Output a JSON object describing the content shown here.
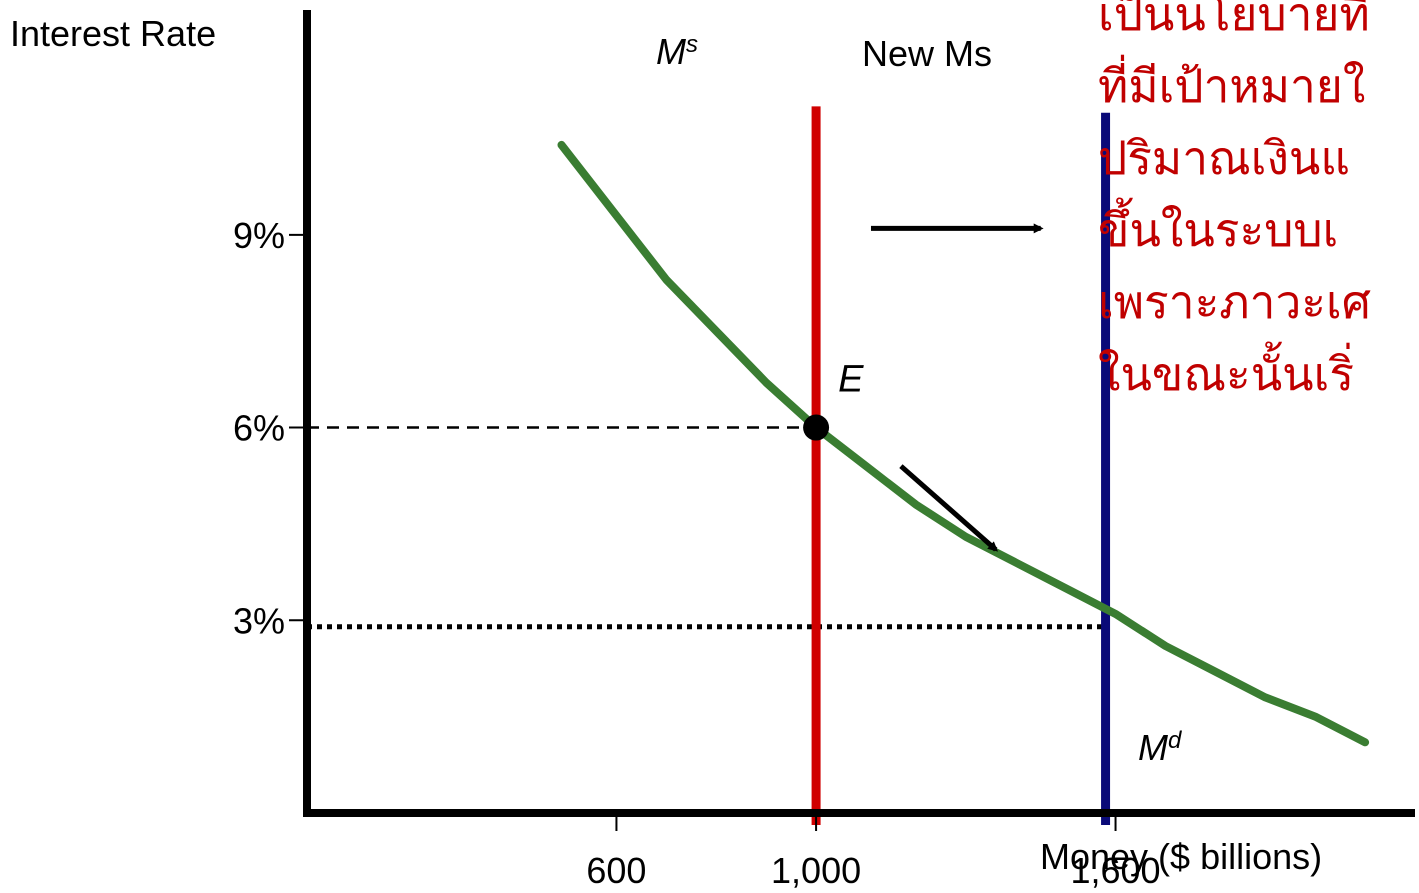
{
  "chart_data": {
    "type": "line",
    "ylabel": "Interest Rate",
    "xlabel": "Money ($ billions)",
    "x_ticks": [
      {
        "value": 600,
        "label": "600"
      },
      {
        "value": 1000,
        "label": "1,000"
      },
      {
        "value": 1600,
        "label": "1,600"
      }
    ],
    "y_ticks": [
      {
        "value": 3,
        "label": "3%"
      },
      {
        "value": 6,
        "label": "6%"
      },
      {
        "value": 9,
        "label": "9%"
      }
    ],
    "xlim": [
      -20,
      2200
    ],
    "ylim": [
      0,
      12.5
    ],
    "series": [
      {
        "name": "Md",
        "label_main": "M",
        "label_sup": "d",
        "color": "#3a7d32",
        "x": [
          490,
          600,
          700,
          800,
          900,
          1000,
          1100,
          1200,
          1300,
          1400,
          1500,
          1600,
          1700,
          1800,
          1900,
          2000,
          2100
        ],
        "y": [
          10.4,
          9.3,
          8.3,
          7.5,
          6.7,
          6.0,
          5.4,
          4.8,
          4.3,
          3.9,
          3.5,
          3.1,
          2.6,
          2.2,
          1.8,
          1.5,
          1.1
        ]
      }
    ],
    "vertical_lines": [
      {
        "name": "Ms",
        "label_main": "M",
        "label_sup": "s",
        "x": 1000,
        "y_top": 11.0,
        "color": "#d00000"
      },
      {
        "name": "New Ms",
        "label_main": "New Ms",
        "label_sup": "",
        "x": 1580,
        "y_top": 10.9,
        "color": "#0a0a78"
      }
    ],
    "equilibrium": {
      "label": "E",
      "x": 1000,
      "y": 6.0
    },
    "reference_lines": [
      {
        "y": 6.0,
        "x": 1000,
        "style": "dashed"
      },
      {
        "y": 2.9,
        "x": 1580,
        "style": "dotted"
      }
    ],
    "arrows": [
      {
        "from": [
          1110,
          9.1
        ],
        "to": [
          1450,
          9.1
        ]
      },
      {
        "from": [
          1170,
          5.4
        ],
        "to": [
          1360,
          4.1
        ]
      }
    ]
  },
  "side_text": [
    "เป็นนโยบายที่",
    "ที่มีเป้าหมายใ",
    "ปริมาณเงินแ",
    "ขึ้นในระบบเ",
    "เพราะภาวะเศ",
    "ในขณะนั้นเริ่"
  ]
}
